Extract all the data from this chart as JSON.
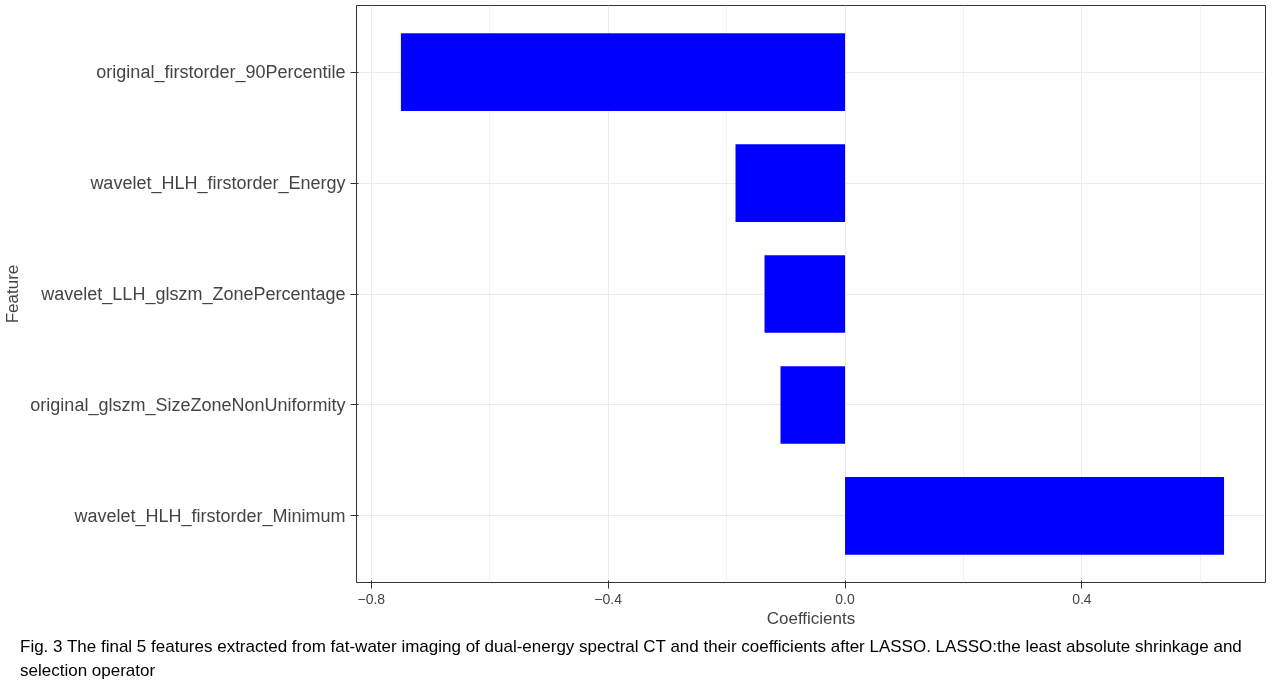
{
  "chart_data": {
    "type": "bar",
    "orientation": "horizontal",
    "xlabel": "Coefficients",
    "ylabel": "Feature",
    "categories": [
      "original_firstorder_90Percentile",
      "wavelet_HLH_firstorder_Energy",
      "wavelet_LLH_glszm_ZonePercentage",
      "original_glszm_SizeZoneNonUniformity",
      "wavelet_HLH_firstorder_Minimum"
    ],
    "values": [
      -0.75,
      -0.185,
      -0.136,
      -0.109,
      0.64
    ],
    "color": "#0000ff",
    "xlim": [
      -0.825,
      0.71
    ],
    "xticks": [
      {
        "value": -0.8,
        "label": "−0.8"
      },
      {
        "value": -0.4,
        "label": "−0.4"
      },
      {
        "value": 0.0,
        "label": "0.0"
      },
      {
        "value": 0.4,
        "label": "0.4"
      }
    ],
    "grid": true,
    "annotations": [
      "Fig. 3 The final 5 features extracted from fat-water imaging of dual-energy spectral CT and their coefficients after LASSO. LASSO:the least absolute shrinkage and selection operator"
    ]
  }
}
